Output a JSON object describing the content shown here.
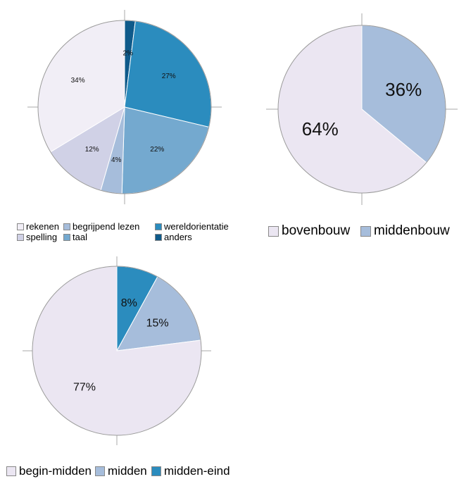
{
  "colors": {
    "axis": "#aaaaaa",
    "slice_outline": "#ffffff"
  },
  "chart_data": [
    {
      "type": "pie",
      "id": "onderwerp",
      "slices": [
        {
          "label": "anders",
          "value": 2,
          "pct_label": "2%",
          "color": "#0f5a8a"
        },
        {
          "label": "wereldorientatie",
          "value": 27,
          "pct_label": "27%",
          "color": "#2b8cbe"
        },
        {
          "label": "taal",
          "value": 22,
          "pct_label": "22%",
          "color": "#74a9cf"
        },
        {
          "label": "begrijpend lezen",
          "value": 4,
          "pct_label": "4%",
          "color": "#a6bddb"
        },
        {
          "label": "spelling",
          "value": 12,
          "pct_label": "12%",
          "color": "#d0d1e6"
        },
        {
          "label": "rekenen",
          "value": 34,
          "pct_label": "34%",
          "color": "#f1eef6"
        }
      ],
      "legend": [
        {
          "label": "rekenen",
          "color": "#f1eef6"
        },
        {
          "label": "spelling",
          "color": "#d0d1e6"
        },
        {
          "label": "begrijpend lezen",
          "color": "#a6bddb"
        },
        {
          "label": "taal",
          "color": "#74a9cf"
        },
        {
          "label": "wereldorientatie",
          "color": "#2b8cbe"
        },
        {
          "label": "anders",
          "color": "#0f5a8a"
        }
      ],
      "legend_columns": 3,
      "legend_placement": "bottom"
    },
    {
      "type": "pie",
      "id": "bouw",
      "slices": [
        {
          "label": "middenbouw",
          "value": 36,
          "pct_label": "36%",
          "color": "#a6bddb"
        },
        {
          "label": "bovenbouw",
          "value": 64,
          "pct_label": "64%",
          "color": "#ebe6f2"
        }
      ],
      "legend": [
        {
          "label": "bovenbouw",
          "color": "#ebe6f2"
        },
        {
          "label": "middenbouw",
          "color": "#a6bddb"
        }
      ],
      "legend_columns": 2,
      "legend_placement": "bottom"
    },
    {
      "type": "pie",
      "id": "periode",
      "slices": [
        {
          "label": "midden-eind",
          "value": 8,
          "pct_label": "8%",
          "color": "#2b8cbe"
        },
        {
          "label": "midden",
          "value": 15,
          "pct_label": "15%",
          "color": "#a6bddb"
        },
        {
          "label": "begin-midden",
          "value": 77,
          "pct_label": "77%",
          "color": "#ebe6f2"
        }
      ],
      "legend": [
        {
          "label": "begin-midden",
          "color": "#ebe6f2"
        },
        {
          "label": "midden",
          "color": "#a6bddb"
        },
        {
          "label": "midden-eind",
          "color": "#2b8cbe"
        }
      ],
      "legend_columns": 3,
      "legend_placement": "bottom"
    }
  ]
}
